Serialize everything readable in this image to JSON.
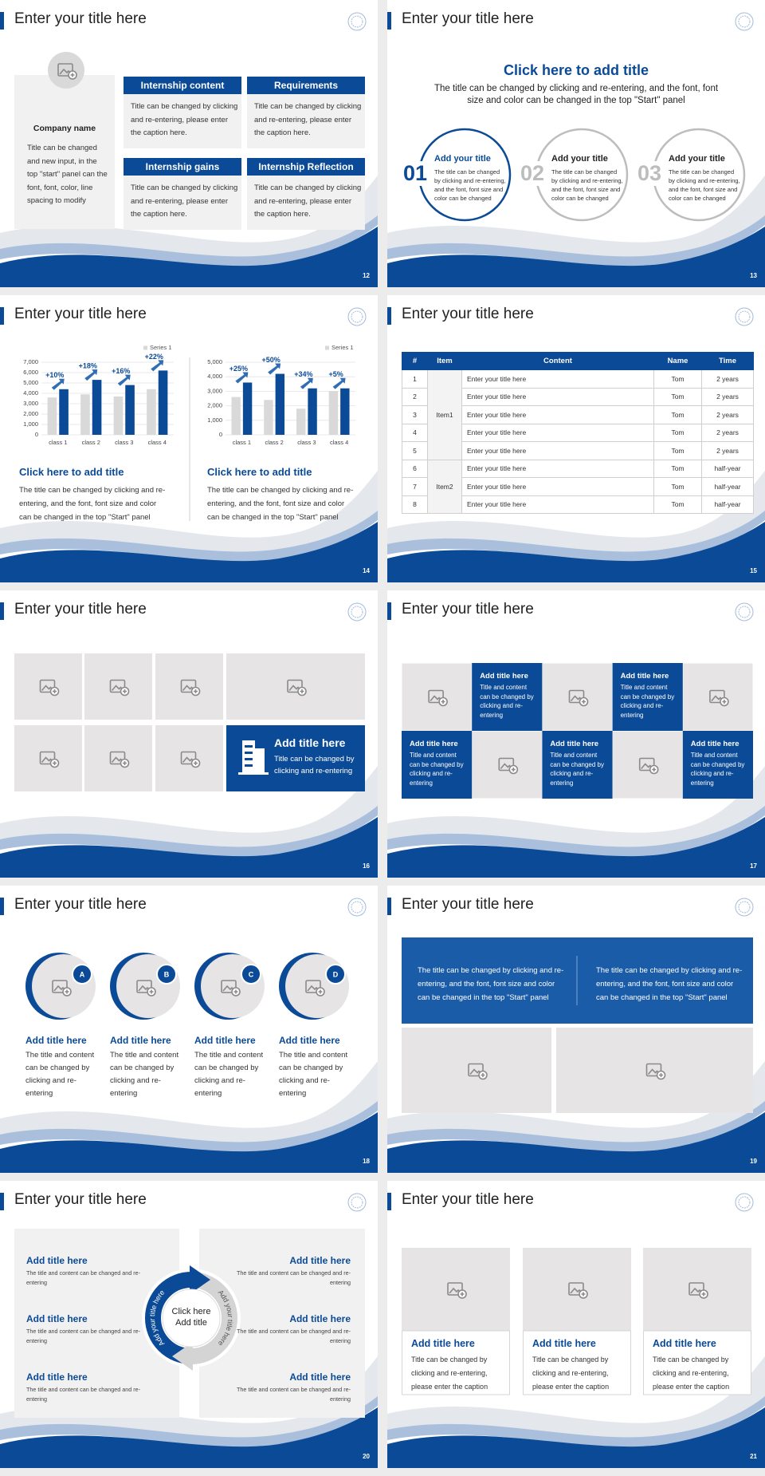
{
  "slides": [
    {
      "title": "Enter your title here",
      "page": 12,
      "company": {
        "name": "Company name",
        "text": "Title can be changed and new input, in the top \"start\" panel can the font, font, color, line spacing to modify"
      },
      "boxes": [
        {
          "heading": "Internship content",
          "text": "Title can be changed by clicking and re-entering, please enter the caption here."
        },
        {
          "heading": "Requirements",
          "text": "Title can be changed by clicking and re-entering, please enter the caption here."
        },
        {
          "heading": "Internship gains",
          "text": "Title can be changed by clicking and re-entering, please enter the caption here."
        },
        {
          "heading": "Internship Reflection",
          "text": "Title can be changed by clicking and re-entering, please enter the caption here."
        }
      ]
    },
    {
      "title": "Enter your title here",
      "page": 13,
      "heading": "Click here to add title",
      "subtitle": "The title can be changed by clicking and re-entering, and the font, font size and color can be changed in the top \"Start\" panel",
      "items": [
        {
          "number": "01",
          "heading": "Add your title",
          "text": "The title can be changed by clicking and re-entering, and the font, font size and color can be changed"
        },
        {
          "number": "02",
          "heading": "Add your title",
          "text": "The title can be changed by clicking and re-entering, and the font, font size and color can be changed"
        },
        {
          "number": "03",
          "heading": "Add your title",
          "text": "The title can be changed by clicking and re-entering, and the font, font size and color can be changed"
        }
      ]
    },
    {
      "title": "Enter your title here",
      "page": 14,
      "sections": [
        {
          "heading": "Click here to add title",
          "text": "The title can be changed by clicking and re-entering, and the font, font size and color can be changed in the top \"Start\" panel"
        },
        {
          "heading": "Click here to add title",
          "text": "The title can be changed by clicking and re-entering, and the font, font size and color can be changed in the top \"Start\" panel"
        }
      ]
    },
    {
      "title": "Enter your title here",
      "page": 15,
      "table": {
        "header": [
          "#",
          "Item",
          "Content",
          "Name",
          "Time"
        ],
        "groups": [
          {
            "item": "Item1",
            "rows": [
              [
                1,
                "Enter your title here",
                "Tom",
                "2 years"
              ],
              [
                2,
                "Enter your title here",
                "Tom",
                "2 years"
              ],
              [
                3,
                "Enter your title here",
                "Tom",
                "2 years"
              ],
              [
                4,
                "Enter your title here",
                "Tom",
                "2 years"
              ],
              [
                5,
                "Enter your title here",
                "Tom",
                "2 years"
              ]
            ]
          },
          {
            "item": "Item2",
            "rows": [
              [
                6,
                "Enter your title here",
                "Tom",
                "half-year"
              ],
              [
                7,
                "Enter your title here",
                "Tom",
                "half-year"
              ],
              [
                8,
                "Enter your title here",
                "Tom",
                "half-year"
              ]
            ]
          }
        ]
      }
    },
    {
      "title": "Enter your title here",
      "page": 16,
      "feature": {
        "heading": "Add title here",
        "text": "Title can be changed by clicking and re-entering"
      }
    },
    {
      "title": "Enter your title here",
      "page": 17,
      "cards": [
        {
          "heading": "Add title here",
          "text": "Title and content can be changed by clicking and re-entering"
        },
        {
          "heading": "Add title here",
          "text": "Title and content can be changed by clicking and re-entering"
        },
        {
          "heading": "Add title here",
          "text": "Title and content can be changed by clicking and re-entering"
        },
        {
          "heading": "Add title here",
          "text": "Title and content can be changed by clicking and re-entering"
        },
        {
          "heading": "Add title here",
          "text": "Title and content can be changed by clicking and re-entering"
        }
      ]
    },
    {
      "title": "Enter your title here",
      "page": 18,
      "items": [
        {
          "letter": "A",
          "heading": "Add title here",
          "text": "The title and content can be changed by clicking and re-entering"
        },
        {
          "letter": "B",
          "heading": "Add title here",
          "text": "The title and content can be changed by clicking and re-entering"
        },
        {
          "letter": "C",
          "heading": "Add title here",
          "text": "The title and content can be changed by clicking and re-entering"
        },
        {
          "letter": "D",
          "heading": "Add title here",
          "text": "The title and content can be changed by clicking and re-entering"
        }
      ]
    },
    {
      "title": "Enter your title here",
      "page": 19,
      "texts": [
        "The title can be changed by clicking and re-entering, and the font, font size and color can be changed in the top \"Start\" panel",
        "The title can be changed by clicking and re-entering, and the font, font size and color can be changed in the top \"Start\" panel"
      ]
    },
    {
      "title": "Enter your title here",
      "page": 20,
      "items": [
        {
          "heading": "Add title here",
          "text": "The title and content can be changed and re-entering"
        },
        {
          "heading": "Add title here",
          "text": "The title and content can be changed and re-entering"
        },
        {
          "heading": "Add title here",
          "text": "The title and content can be changed and re-entering"
        },
        {
          "heading": "Add title here",
          "text": "The title and content can be changed and re-entering"
        },
        {
          "heading": "Add title here",
          "text": "The title and content can be changed and re-entering"
        },
        {
          "heading": "Add title here",
          "text": "The title and content can be changed and re-entering"
        }
      ],
      "center": "Click here Add title",
      "arcs": [
        "Add your title here",
        "Add your title here"
      ]
    },
    {
      "title": "Enter your title here",
      "page": 21,
      "cards": [
        {
          "heading": "Add title here",
          "text": "Title can be changed by clicking and re-entering, please enter the caption"
        },
        {
          "heading": "Add title here",
          "text": "Title can be changed by clicking and re-entering, please enter the caption"
        },
        {
          "heading": "Add title here",
          "text": "Title can be changed by clicking and re-entering, please enter the caption"
        }
      ]
    }
  ],
  "chart_data": [
    {
      "type": "bar",
      "categories": [
        "class 1",
        "class 2",
        "class 3",
        "class 4"
      ],
      "series": [
        {
          "name": "Series 1",
          "color": "#d9d9d9",
          "values": [
            3600,
            3900,
            3700,
            4400
          ]
        },
        {
          "color": "#0b4a96",
          "values": [
            4400,
            5300,
            4800,
            6200
          ]
        }
      ],
      "annotations": [
        "+10%",
        "+18%",
        "+16%",
        "+22%"
      ],
      "ylim": [
        0,
        7000
      ],
      "yticks": [
        0,
        {
          "value": 1000,
          "label": "1,000"
        },
        {
          "value": 2000,
          "label": "2,000"
        },
        {
          "value": 3000,
          "label": "3,000"
        },
        {
          "value": 4000,
          "label": "4,000"
        },
        {
          "value": 5000,
          "label": "5,000"
        },
        {
          "value": 6000,
          "label": "6,000"
        },
        {
          "value": 7000,
          "label": "7,000"
        }
      ],
      "grid": true,
      "legend": "upper right"
    },
    {
      "type": "bar",
      "categories": [
        "class 1",
        "class 2",
        "class 3",
        "class 4"
      ],
      "series": [
        {
          "name": "Series 1",
          "color": "#d9d9d9",
          "values": [
            2600,
            2400,
            1800,
            3000
          ]
        },
        {
          "color": "#0b4a96",
          "values": [
            3600,
            4200,
            3200,
            3200
          ]
        }
      ],
      "annotations": [
        "+25%",
        "+50%",
        "+34%",
        "+5%"
      ],
      "ylim": [
        0,
        5000
      ],
      "yticks": [
        0,
        {
          "value": 1000,
          "label": "1,000"
        },
        {
          "value": 2000,
          "label": "2,000"
        },
        {
          "value": 3000,
          "label": "3,000"
        },
        {
          "value": 4000,
          "label": "4,000"
        },
        {
          "value": 5000,
          "label": "5,000"
        }
      ],
      "grid": true,
      "legend": "upper right"
    }
  ]
}
